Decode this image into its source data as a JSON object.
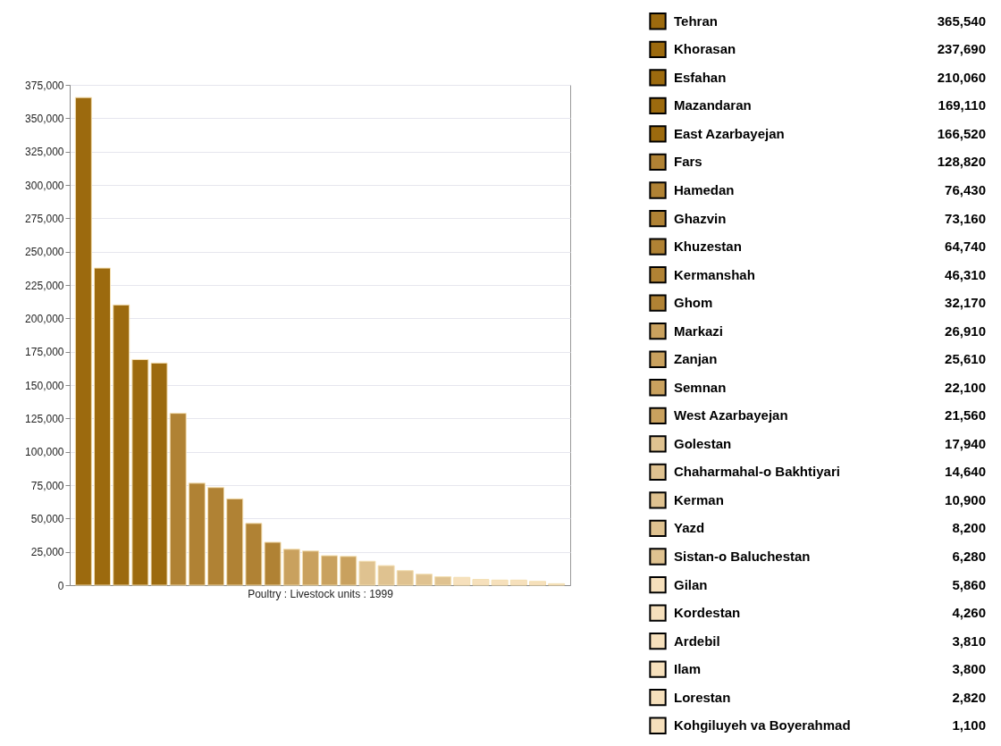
{
  "chart_data": [
    {
      "type": "bar",
      "xlabel": "Poultry : Livestock units : 1999",
      "categories": [
        null,
        null,
        null,
        null,
        null,
        null,
        null,
        null,
        null,
        null,
        null,
        null,
        null,
        null,
        null,
        null,
        null,
        null,
        null,
        null,
        null,
        null,
        null,
        null,
        null,
        null
      ],
      "values": [
        365540,
        237690,
        210060,
        169110,
        166520,
        128820,
        76430,
        73160,
        64740,
        46310,
        32170,
        26910,
        25610,
        22100,
        21560,
        17940,
        14640,
        10900,
        8200,
        6280,
        5860,
        4260,
        3810,
        3800,
        2820,
        1100
      ],
      "colors": [
        "#9c6a0e",
        "#9c6a0e",
        "#9c6a0e",
        "#9c6a0e",
        "#9c6a0e",
        "#b08234",
        "#b08234",
        "#b08234",
        "#b08234",
        "#b08234",
        "#b08234",
        "#c9a15e",
        "#c9a15e",
        "#c9a15e",
        "#c9a15e",
        "#dfc290",
        "#dfc290",
        "#dfc290",
        "#dfc290",
        "#dfc290",
        "#f6e0bc",
        "#f6e0bc",
        "#f6e0bc",
        "#f6e0bc",
        "#f6e0bc",
        "#f6e0bc"
      ],
      "ylim": [
        0,
        375000
      ],
      "yticks": [
        0,
        {
          "value": 25000,
          "label": "25,000"
        },
        {
          "value": 50000,
          "label": "50,000"
        },
        {
          "value": 75000,
          "label": "75,000"
        },
        {
          "value": 100000,
          "label": "100,000"
        },
        {
          "value": 125000,
          "label": "125,000"
        },
        {
          "value": 150000,
          "label": "150,000"
        },
        {
          "value": 175000,
          "label": "175,000"
        },
        {
          "value": 200000,
          "label": "200,000"
        },
        {
          "value": 225000,
          "label": "225,000"
        },
        {
          "value": 250000,
          "label": "250,000"
        },
        {
          "value": 275000,
          "label": "275,000"
        },
        {
          "value": 300000,
          "label": "300,000"
        },
        {
          "value": 325000,
          "label": "325,000"
        },
        {
          "value": 350000,
          "label": "350,000"
        },
        {
          "value": 375000,
          "label": "375,000"
        }
      ],
      "grid": "y",
      "tick_labels": "y"
    },
    {
      "type": "other",
      "categories": [
        "Tehran",
        "Khorasan",
        "Esfahan",
        "Mazandaran",
        "East Azarbayejan",
        "Fars",
        "Hamedan",
        "Ghazvin",
        "Khuzestan",
        "Kermanshah",
        "Ghom",
        "Markazi",
        "Zanjan",
        "Semnan",
        "West Azarbayejan",
        "Golestan",
        "Chaharmahal-o Bakhtiyari",
        "Kerman",
        "Yazd",
        "Sistan-o Baluchestan",
        "Gilan",
        "Kordestan",
        "Ardebil",
        "Ilam",
        "Lorestan",
        "Kohgiluyeh va Boyerahmad"
      ],
      "values": [
        365540,
        237690,
        210060,
        169110,
        166520,
        128820,
        76430,
        73160,
        64740,
        46310,
        32170,
        26910,
        25610,
        22100,
        21560,
        17940,
        14640,
        10900,
        8200,
        6280,
        5860,
        4260,
        3810,
        3800,
        2820,
        1100
      ],
      "value_labels": [
        "365,540",
        "237,690",
        "210,060",
        "169,110",
        "166,520",
        "128,820",
        "76,430",
        "73,160",
        "64,740",
        "46,310",
        "32,170",
        "26,910",
        "25,610",
        "22,100",
        "21,560",
        "17,940",
        "14,640",
        "10,900",
        "8,200",
        "6,280",
        "5,860",
        "4,260",
        "3,810",
        "3,800",
        "2,820",
        "1,100"
      ],
      "colors": [
        "#9c6a0e",
        "#9c6a0e",
        "#9c6a0e",
        "#9c6a0e",
        "#9c6a0e",
        "#b08234",
        "#b08234",
        "#b08234",
        "#b08234",
        "#b08234",
        "#b08234",
        "#c9a15e",
        "#c9a15e",
        "#c9a15e",
        "#c9a15e",
        "#dfc290",
        "#dfc290",
        "#dfc290",
        "#dfc290",
        "#dfc290",
        "#f6e0bc",
        "#f6e0bc",
        "#f6e0bc",
        "#f6e0bc",
        "#f6e0bc",
        "#f6e0bc"
      ]
    }
  ]
}
